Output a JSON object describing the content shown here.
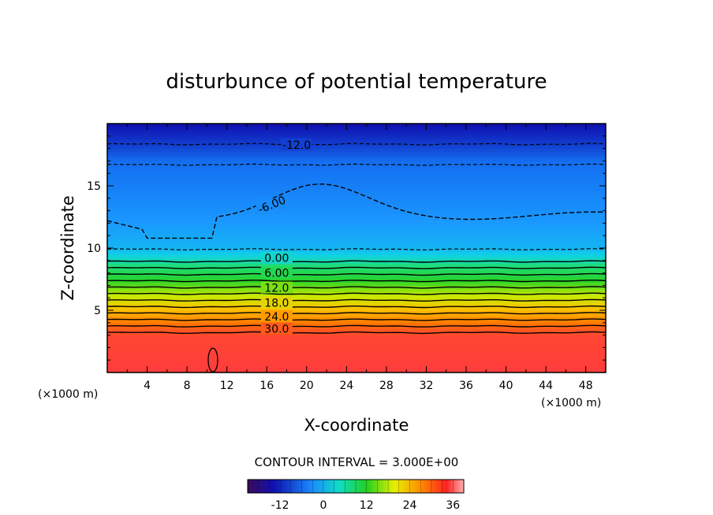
{
  "chart_data": {
    "type": "heatmap",
    "title": "disturbunce of potential temperature",
    "xlabel": "X-coordinate",
    "ylabel": "Z-coordinate",
    "x_unit_left": "(×1000 m)",
    "x_unit_right": "(×1000 m)",
    "xlim": [
      0,
      50
    ],
    "ylim": [
      0,
      20
    ],
    "x_ticks": [
      "4",
      "8",
      "12",
      "16",
      "20",
      "24",
      "28",
      "32",
      "36",
      "40",
      "44",
      "48"
    ],
    "y_ticks": [
      "5",
      "10",
      "15"
    ],
    "contour_interval_text": "CONTOUR INTERVAL = 3.000E+00",
    "contour_labels": [
      {
        "text": "-12.0",
        "x": 19,
        "z": 18.3
      },
      {
        "text": "-6.00",
        "x": 16.5,
        "z": 13.5
      },
      {
        "text": "0.00",
        "x": 17,
        "z": 9.2
      },
      {
        "text": "6.00",
        "x": 17,
        "z": 8.0
      },
      {
        "text": "12.0",
        "x": 17,
        "z": 6.8
      },
      {
        "text": "18.0",
        "x": 17,
        "z": 5.6
      },
      {
        "text": "24.0",
        "x": 17,
        "z": 4.5
      },
      {
        "text": "30.0",
        "x": 17,
        "z": 3.5
      }
    ],
    "colorbar": {
      "min": -21,
      "max": 39,
      "ticks": [
        "-12",
        "0",
        "12",
        "24",
        "36"
      ]
    },
    "value_profile_by_height": [
      {
        "z": 0,
        "value": 33
      },
      {
        "z": 3,
        "value": 32
      },
      {
        "z": 3.5,
        "value": 30
      },
      {
        "z": 4.5,
        "value": 24
      },
      {
        "z": 5.6,
        "value": 18
      },
      {
        "z": 6.8,
        "value": 12
      },
      {
        "z": 8.0,
        "value": 6
      },
      {
        "z": 9.2,
        "value": 0
      },
      {
        "z": 10.0,
        "value": -3
      },
      {
        "z": 13.5,
        "value": -6
      },
      {
        "z": 17.0,
        "value": -9
      },
      {
        "z": 18.3,
        "value": -12
      },
      {
        "z": 20.0,
        "value": -15
      }
    ]
  }
}
